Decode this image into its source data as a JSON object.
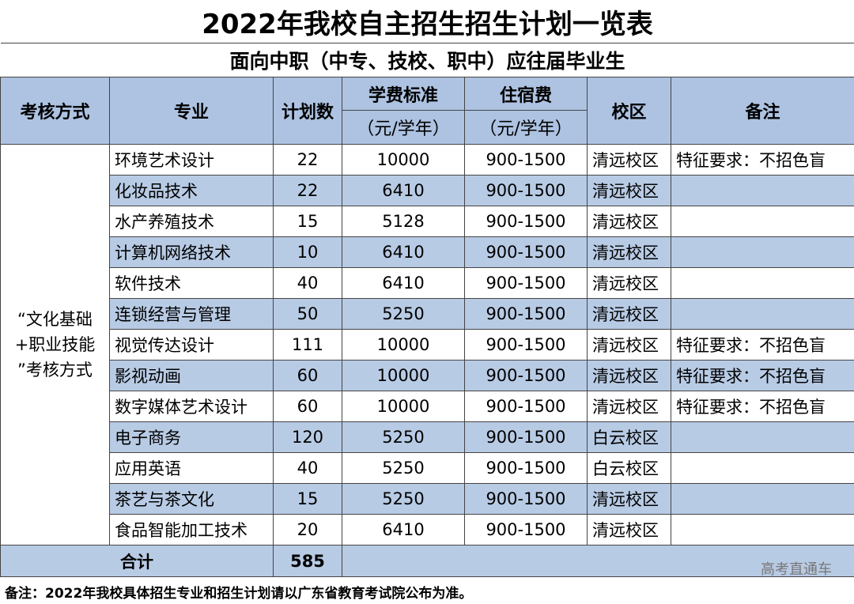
{
  "title": "2022年我校自主招生招生计划一览表",
  "subtitle": "面向中职（中专、技校、职中）应往届毕业生",
  "header": {
    "method": "考核方式",
    "major": "专业",
    "plan": "计划数",
    "tuition": {
      "label": "学费标准",
      "unit": "（元/学年）"
    },
    "dorm": {
      "label": "住宿费",
      "unit": "（元/学年）"
    },
    "campus": "校区",
    "remark": "备注"
  },
  "method_lines": [
    "“文化基础",
    "+职业技能",
    "”考核方式"
  ],
  "rows": [
    {
      "major": "环境艺术设计",
      "plan": 22,
      "tuition": 10000,
      "dorm": "900-1500",
      "campus": "清远校区",
      "remark": "特征要求：不招色盲"
    },
    {
      "major": "化妆品技术",
      "plan": 22,
      "tuition": 6410,
      "dorm": "900-1500",
      "campus": "清远校区"
    },
    {
      "major": "水产养殖技术",
      "plan": 15,
      "tuition": 5128,
      "dorm": "900-1500",
      "campus": "清远校区"
    },
    {
      "major": "计算机网络技术",
      "plan": 10,
      "tuition": 6410,
      "dorm": "900-1500",
      "campus": "清远校区"
    },
    {
      "major": "软件技术",
      "plan": 40,
      "tuition": 6410,
      "dorm": "900-1500",
      "campus": "清远校区"
    },
    {
      "major": "连锁经营与管理",
      "plan": 50,
      "tuition": 5250,
      "dorm": "900-1500",
      "campus": "清远校区"
    },
    {
      "major": "视觉传达设计",
      "plan": 111,
      "tuition": 10000,
      "dorm": "900-1500",
      "campus": "清远校区",
      "remark": "特征要求：不招色盲"
    },
    {
      "major": "影视动画",
      "plan": 60,
      "tuition": 10000,
      "dorm": "900-1500",
      "campus": "清远校区",
      "remark": "特征要求：不招色盲"
    },
    {
      "major": "数字媒体艺术设计",
      "plan": 60,
      "tuition": 10000,
      "dorm": "900-1500",
      "campus": "清远校区",
      "remark": "特征要求：不招色盲"
    },
    {
      "major": "电子商务",
      "plan": 120,
      "tuition": 5250,
      "dorm": "900-1500",
      "campus": "白云校区"
    },
    {
      "major": "应用英语",
      "plan": 40,
      "tuition": 5250,
      "dorm": "900-1500",
      "campus": "白云校区"
    },
    {
      "major": "茶艺与茶文化",
      "plan": 15,
      "tuition": 5250,
      "dorm": "900-1500",
      "campus": "清远校区"
    },
    {
      "major": "食品智能加工技术",
      "plan": 20,
      "tuition": 6410,
      "dorm": "900-1500",
      "campus": "清远校区"
    }
  ],
  "total": {
    "label": "合计",
    "value": 585
  },
  "note": "备注：2022年我校具体招生专业和招生计划请以广东省教育考试院公布为准。",
  "watermark": "高考直通车"
}
